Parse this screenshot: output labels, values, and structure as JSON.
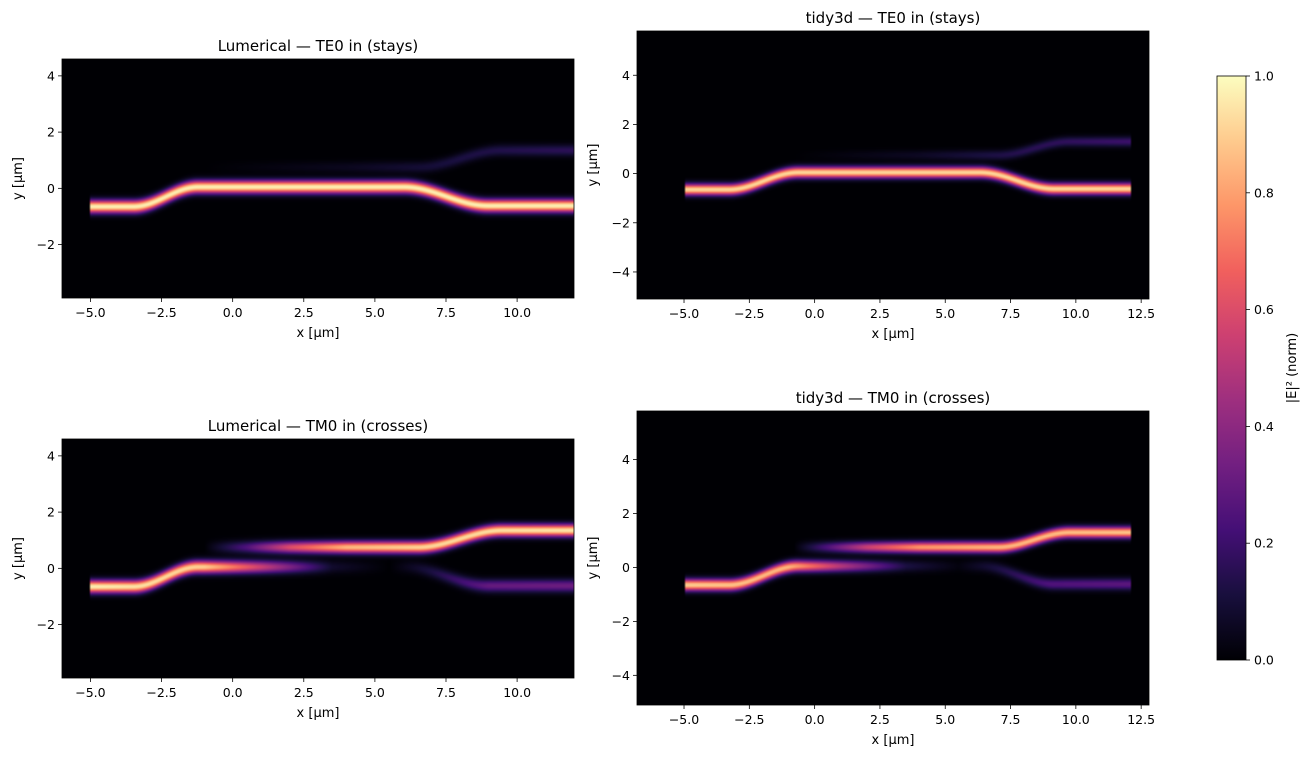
{
  "colormap": {
    "name": "magma",
    "stops": [
      "#000004",
      "#180f3d",
      "#440f76",
      "#721f81",
      "#9e2f7f",
      "#cd4071",
      "#f1605d",
      "#fd9668",
      "#feca8d",
      "#fcfdbf"
    ]
  },
  "colorbar": {
    "label": "|E|² (norm)",
    "range": [
      0.0,
      1.0
    ],
    "ticks": [
      0.0,
      0.2,
      0.4,
      0.6,
      0.8,
      1.0
    ],
    "tick_labels": [
      "0.0",
      "0.2",
      "0.4",
      "0.6",
      "0.8",
      "1.0"
    ]
  },
  "chart_data": [
    {
      "type": "heatmap",
      "title": "Lumerical — TE0 in (stays)",
      "xlabel": "x [µm]",
      "ylabel": "y [µm]",
      "xlim": [
        -6.0,
        12.0
      ],
      "ylim": [
        -3.9,
        4.6
      ],
      "xticks": [
        -5.0,
        -2.5,
        0.0,
        2.5,
        5.0,
        7.5,
        10.0
      ],
      "xtick_labels": [
        "−5.0",
        "−2.5",
        "0.0",
        "2.5",
        "5.0",
        "7.5",
        "10.0"
      ],
      "yticks": [
        -2,
        0,
        2,
        4
      ],
      "ytick_labels": [
        "−2",
        "0",
        "2",
        "4"
      ],
      "field_extent_x": [
        -5.0,
        12.0
      ],
      "waveguides": [
        {
          "path": [
            [
              -5.0,
              -0.65
            ],
            [
              -3.5,
              -0.65
            ],
            [
              -1.2,
              0.05
            ],
            [
              6.0,
              0.05
            ],
            [
              9.0,
              -0.62
            ],
            [
              12.0,
              -0.62
            ]
          ],
          "intensity": [
            [
              -5.0,
              0.97
            ],
            [
              12.0,
              0.97
            ]
          ],
          "width": 0.22
        },
        {
          "path": [
            [
              -1.0,
              0.75
            ],
            [
              6.5,
              0.75
            ],
            [
              9.5,
              1.35
            ],
            [
              12.0,
              1.35
            ]
          ],
          "intensity": [
            [
              -1.0,
              0.0
            ],
            [
              4.0,
              0.05
            ],
            [
              8.0,
              0.12
            ],
            [
              12.0,
              0.16
            ]
          ],
          "width": 0.2
        }
      ]
    },
    {
      "type": "heatmap",
      "title": "tidy3d — TE0 in (stays)",
      "xlabel": "x [µm]",
      "ylabel": "y [µm]",
      "xlim": [
        -6.8,
        12.8
      ],
      "ylim": [
        -5.1,
        5.8
      ],
      "xticks": [
        -5.0,
        -2.5,
        0.0,
        2.5,
        5.0,
        7.5,
        10.0,
        12.5
      ],
      "xtick_labels": [
        "−5.0",
        "−2.5",
        "0.0",
        "2.5",
        "5.0",
        "7.5",
        "10.0",
        "12.5"
      ],
      "yticks": [
        -4,
        -2,
        0,
        2,
        4
      ],
      "ytick_labels": [
        "−4",
        "−2",
        "0",
        "2",
        "4"
      ],
      "field_extent_x": [
        -5.0,
        12.1
      ],
      "waveguides": [
        {
          "path": [
            [
              -5.0,
              -0.65
            ],
            [
              -3.3,
              -0.65
            ],
            [
              -0.6,
              0.05
            ],
            [
              6.3,
              0.05
            ],
            [
              9.2,
              -0.62
            ],
            [
              12.1,
              -0.62
            ]
          ],
          "intensity": [
            [
              -5.0,
              0.92
            ],
            [
              12.1,
              0.92
            ]
          ],
          "width": 0.22
        },
        {
          "path": [
            [
              -0.8,
              0.75
            ],
            [
              7.0,
              0.75
            ],
            [
              9.8,
              1.3
            ],
            [
              12.1,
              1.3
            ]
          ],
          "intensity": [
            [
              -0.8,
              0.0
            ],
            [
              4.0,
              0.06
            ],
            [
              8.0,
              0.15
            ],
            [
              12.1,
              0.2
            ]
          ],
          "width": 0.2
        }
      ]
    },
    {
      "type": "heatmap",
      "title": "Lumerical — TM0 in (crosses)",
      "xlabel": "x [µm]",
      "ylabel": "y [µm]",
      "xlim": [
        -6.0,
        12.0
      ],
      "ylim": [
        -3.9,
        4.6
      ],
      "xticks": [
        -5.0,
        -2.5,
        0.0,
        2.5,
        5.0,
        7.5,
        10.0
      ],
      "xtick_labels": [
        "−5.0",
        "−2.5",
        "0.0",
        "2.5",
        "5.0",
        "7.5",
        "10.0"
      ],
      "yticks": [
        -2,
        0,
        2,
        4
      ],
      "ytick_labels": [
        "−2",
        "0",
        "2",
        "4"
      ],
      "field_extent_x": [
        -5.0,
        12.0
      ],
      "waveguides": [
        {
          "path": [
            [
              -5.0,
              -0.65
            ],
            [
              -3.5,
              -0.65
            ],
            [
              -1.2,
              0.05
            ],
            [
              6.0,
              0.05
            ],
            [
              9.0,
              -0.62
            ],
            [
              12.0,
              -0.62
            ]
          ],
          "intensity": [
            [
              -5.0,
              0.97
            ],
            [
              -1.0,
              0.9
            ],
            [
              1.0,
              0.55
            ],
            [
              3.5,
              0.08
            ],
            [
              5.5,
              0.0
            ],
            [
              7.0,
              0.12
            ],
            [
              9.0,
              0.3
            ],
            [
              12.0,
              0.32
            ]
          ],
          "width": 0.22
        },
        {
          "path": [
            [
              -1.0,
              0.75
            ],
            [
              6.5,
              0.75
            ],
            [
              9.5,
              1.35
            ],
            [
              12.0,
              1.35
            ]
          ],
          "intensity": [
            [
              -1.0,
              0.0
            ],
            [
              0.5,
              0.25
            ],
            [
              2.0,
              0.6
            ],
            [
              4.0,
              0.85
            ],
            [
              7.0,
              0.92
            ],
            [
              12.0,
              0.95
            ]
          ],
          "width": 0.21
        }
      ]
    },
    {
      "type": "heatmap",
      "title": "tidy3d — TM0 in (crosses)",
      "xlabel": "x [µm]",
      "ylabel": "y [µm]",
      "xlim": [
        -6.8,
        12.8
      ],
      "ylim": [
        -5.1,
        5.8
      ],
      "xticks": [
        -5.0,
        -2.5,
        0.0,
        2.5,
        5.0,
        7.5,
        10.0,
        12.5
      ],
      "xtick_labels": [
        "−5.0",
        "−2.5",
        "0.0",
        "2.5",
        "5.0",
        "7.5",
        "10.0",
        "12.5"
      ],
      "yticks": [
        -4,
        -2,
        0,
        2,
        4
      ],
      "ytick_labels": [
        "−4",
        "−2",
        "0",
        "2",
        "4"
      ],
      "field_extent_x": [
        -5.0,
        12.1
      ],
      "waveguides": [
        {
          "path": [
            [
              -5.0,
              -0.65
            ],
            [
              -3.3,
              -0.65
            ],
            [
              -0.6,
              0.05
            ],
            [
              6.3,
              0.05
            ],
            [
              9.2,
              -0.62
            ],
            [
              12.1,
              -0.62
            ]
          ],
          "intensity": [
            [
              -5.0,
              0.9
            ],
            [
              -1.0,
              0.85
            ],
            [
              1.0,
              0.5
            ],
            [
              3.5,
              0.12
            ],
            [
              5.5,
              0.02
            ],
            [
              7.0,
              0.12
            ],
            [
              9.0,
              0.25
            ],
            [
              12.1,
              0.28
            ]
          ],
          "width": 0.21
        },
        {
          "path": [
            [
              -0.8,
              0.75
            ],
            [
              7.0,
              0.75
            ],
            [
              9.8,
              1.3
            ],
            [
              12.1,
              1.3
            ]
          ],
          "intensity": [
            [
              -0.8,
              0.0
            ],
            [
              0.5,
              0.25
            ],
            [
              2.0,
              0.55
            ],
            [
              4.0,
              0.78
            ],
            [
              7.0,
              0.85
            ],
            [
              12.1,
              0.88
            ]
          ],
          "width": 0.2
        }
      ]
    }
  ]
}
